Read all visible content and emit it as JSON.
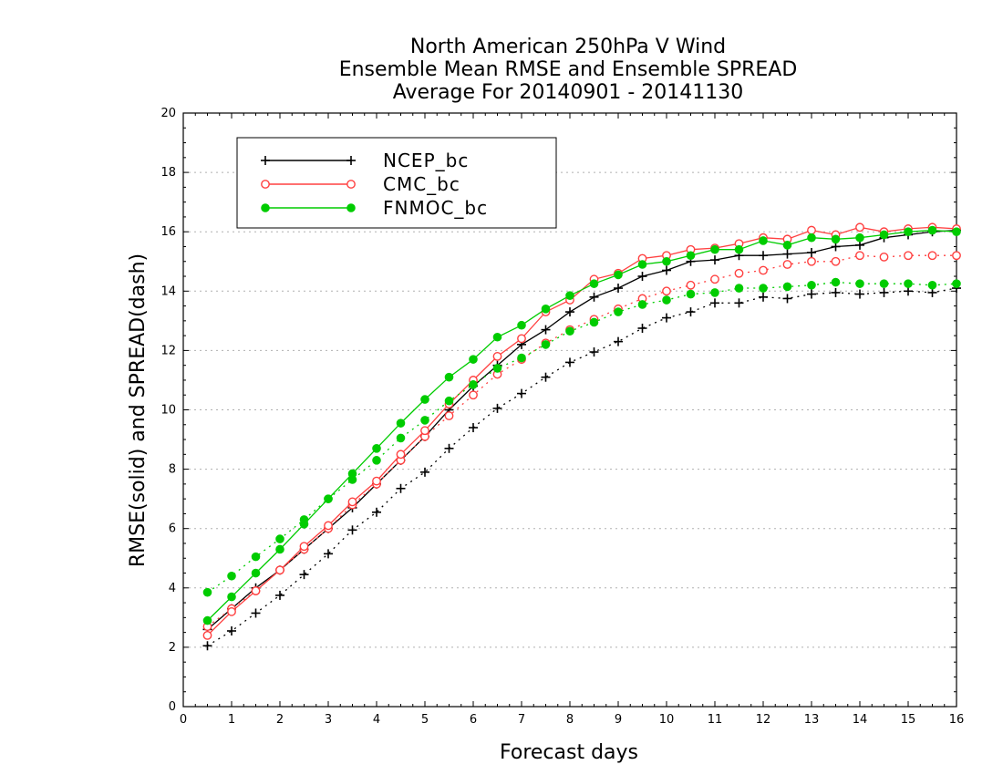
{
  "chart_data": {
    "type": "line",
    "title": [
      "North American 250hPa V Wind",
      "Ensemble Mean RMSE and Ensemble SPREAD",
      "Average For 20140901 - 20141130"
    ],
    "xlabel": "Forecast days",
    "ylabel": "RMSE(solid) and SPREAD(dash)",
    "xlim": [
      0,
      16
    ],
    "ylim": [
      0,
      20
    ],
    "xticks": [
      0,
      1,
      2,
      3,
      4,
      5,
      6,
      7,
      8,
      9,
      10,
      11,
      12,
      13,
      14,
      15,
      16
    ],
    "yticks": [
      0,
      2,
      4,
      6,
      8,
      10,
      12,
      14,
      16,
      18,
      20
    ],
    "grid": true,
    "legend_position": "top-left",
    "x": [
      0.5,
      1,
      1.5,
      2,
      2.5,
      3,
      3.5,
      4,
      4.5,
      5,
      5.5,
      6,
      6.5,
      7,
      7.5,
      8,
      8.5,
      9,
      9.5,
      10,
      10.5,
      11,
      11.5,
      12,
      12.5,
      13,
      13.5,
      14,
      14.5,
      15,
      15.5,
      16
    ],
    "series": [
      {
        "name": "NCEP_bc",
        "color": "#000000",
        "marker": "plus",
        "rmse": [
          2.6,
          3.3,
          4.0,
          4.6,
          5.3,
          6.0,
          6.7,
          7.5,
          8.3,
          9.1,
          10.0,
          10.8,
          11.5,
          12.2,
          12.7,
          13.3,
          13.8,
          14.1,
          14.5,
          14.7,
          15.0,
          15.05,
          15.2,
          15.2,
          15.25,
          15.3,
          15.5,
          15.55,
          15.8,
          15.9,
          16.0,
          16.05
        ],
        "spread": [
          2.05,
          2.55,
          3.15,
          3.75,
          4.45,
          5.15,
          5.95,
          6.55,
          7.35,
          7.9,
          8.7,
          9.4,
          10.05,
          10.55,
          11.1,
          11.6,
          11.95,
          12.3,
          12.75,
          13.1,
          13.3,
          13.6,
          13.6,
          13.8,
          13.75,
          13.9,
          13.95,
          13.9,
          13.95,
          14.0,
          13.95,
          14.1
        ]
      },
      {
        "name": "CMC_bc",
        "color": "#ff4040",
        "marker": "open-circle",
        "rmse": [
          2.4,
          3.2,
          3.9,
          4.6,
          5.4,
          6.1,
          6.9,
          7.6,
          8.5,
          9.3,
          10.2,
          11.0,
          11.8,
          12.4,
          13.3,
          13.7,
          14.4,
          14.6,
          15.1,
          15.2,
          15.4,
          15.45,
          15.6,
          15.8,
          15.75,
          16.05,
          15.9,
          16.15,
          16.0,
          16.1,
          16.15,
          16.1
        ],
        "spread": [
          2.7,
          3.3,
          3.9,
          4.6,
          5.3,
          6.0,
          6.8,
          7.5,
          8.3,
          9.1,
          9.8,
          10.5,
          11.2,
          11.7,
          12.25,
          12.7,
          13.05,
          13.4,
          13.75,
          14.0,
          14.2,
          14.4,
          14.6,
          14.7,
          14.9,
          15.0,
          15.0,
          15.2,
          15.15,
          15.2,
          15.2,
          15.2
        ]
      },
      {
        "name": "FNMOC_bc",
        "color": "#00cc00",
        "marker": "filled-circle",
        "rmse": [
          2.9,
          3.7,
          4.5,
          5.3,
          6.15,
          7.0,
          7.85,
          8.7,
          9.55,
          10.35,
          11.1,
          11.7,
          12.45,
          12.85,
          13.4,
          13.85,
          14.25,
          14.55,
          14.9,
          15.0,
          15.2,
          15.4,
          15.4,
          15.7,
          15.55,
          15.8,
          15.75,
          15.8,
          15.9,
          16.0,
          16.05,
          16.0
        ],
        "spread": [
          3.85,
          4.4,
          5.05,
          5.65,
          6.3,
          7.0,
          7.65,
          8.3,
          9.05,
          9.65,
          10.3,
          10.85,
          11.4,
          11.75,
          12.2,
          12.65,
          12.95,
          13.3,
          13.55,
          13.7,
          13.9,
          13.95,
          14.1,
          14.1,
          14.15,
          14.2,
          14.3,
          14.25,
          14.25,
          14.25,
          14.2,
          14.25
        ]
      }
    ]
  }
}
